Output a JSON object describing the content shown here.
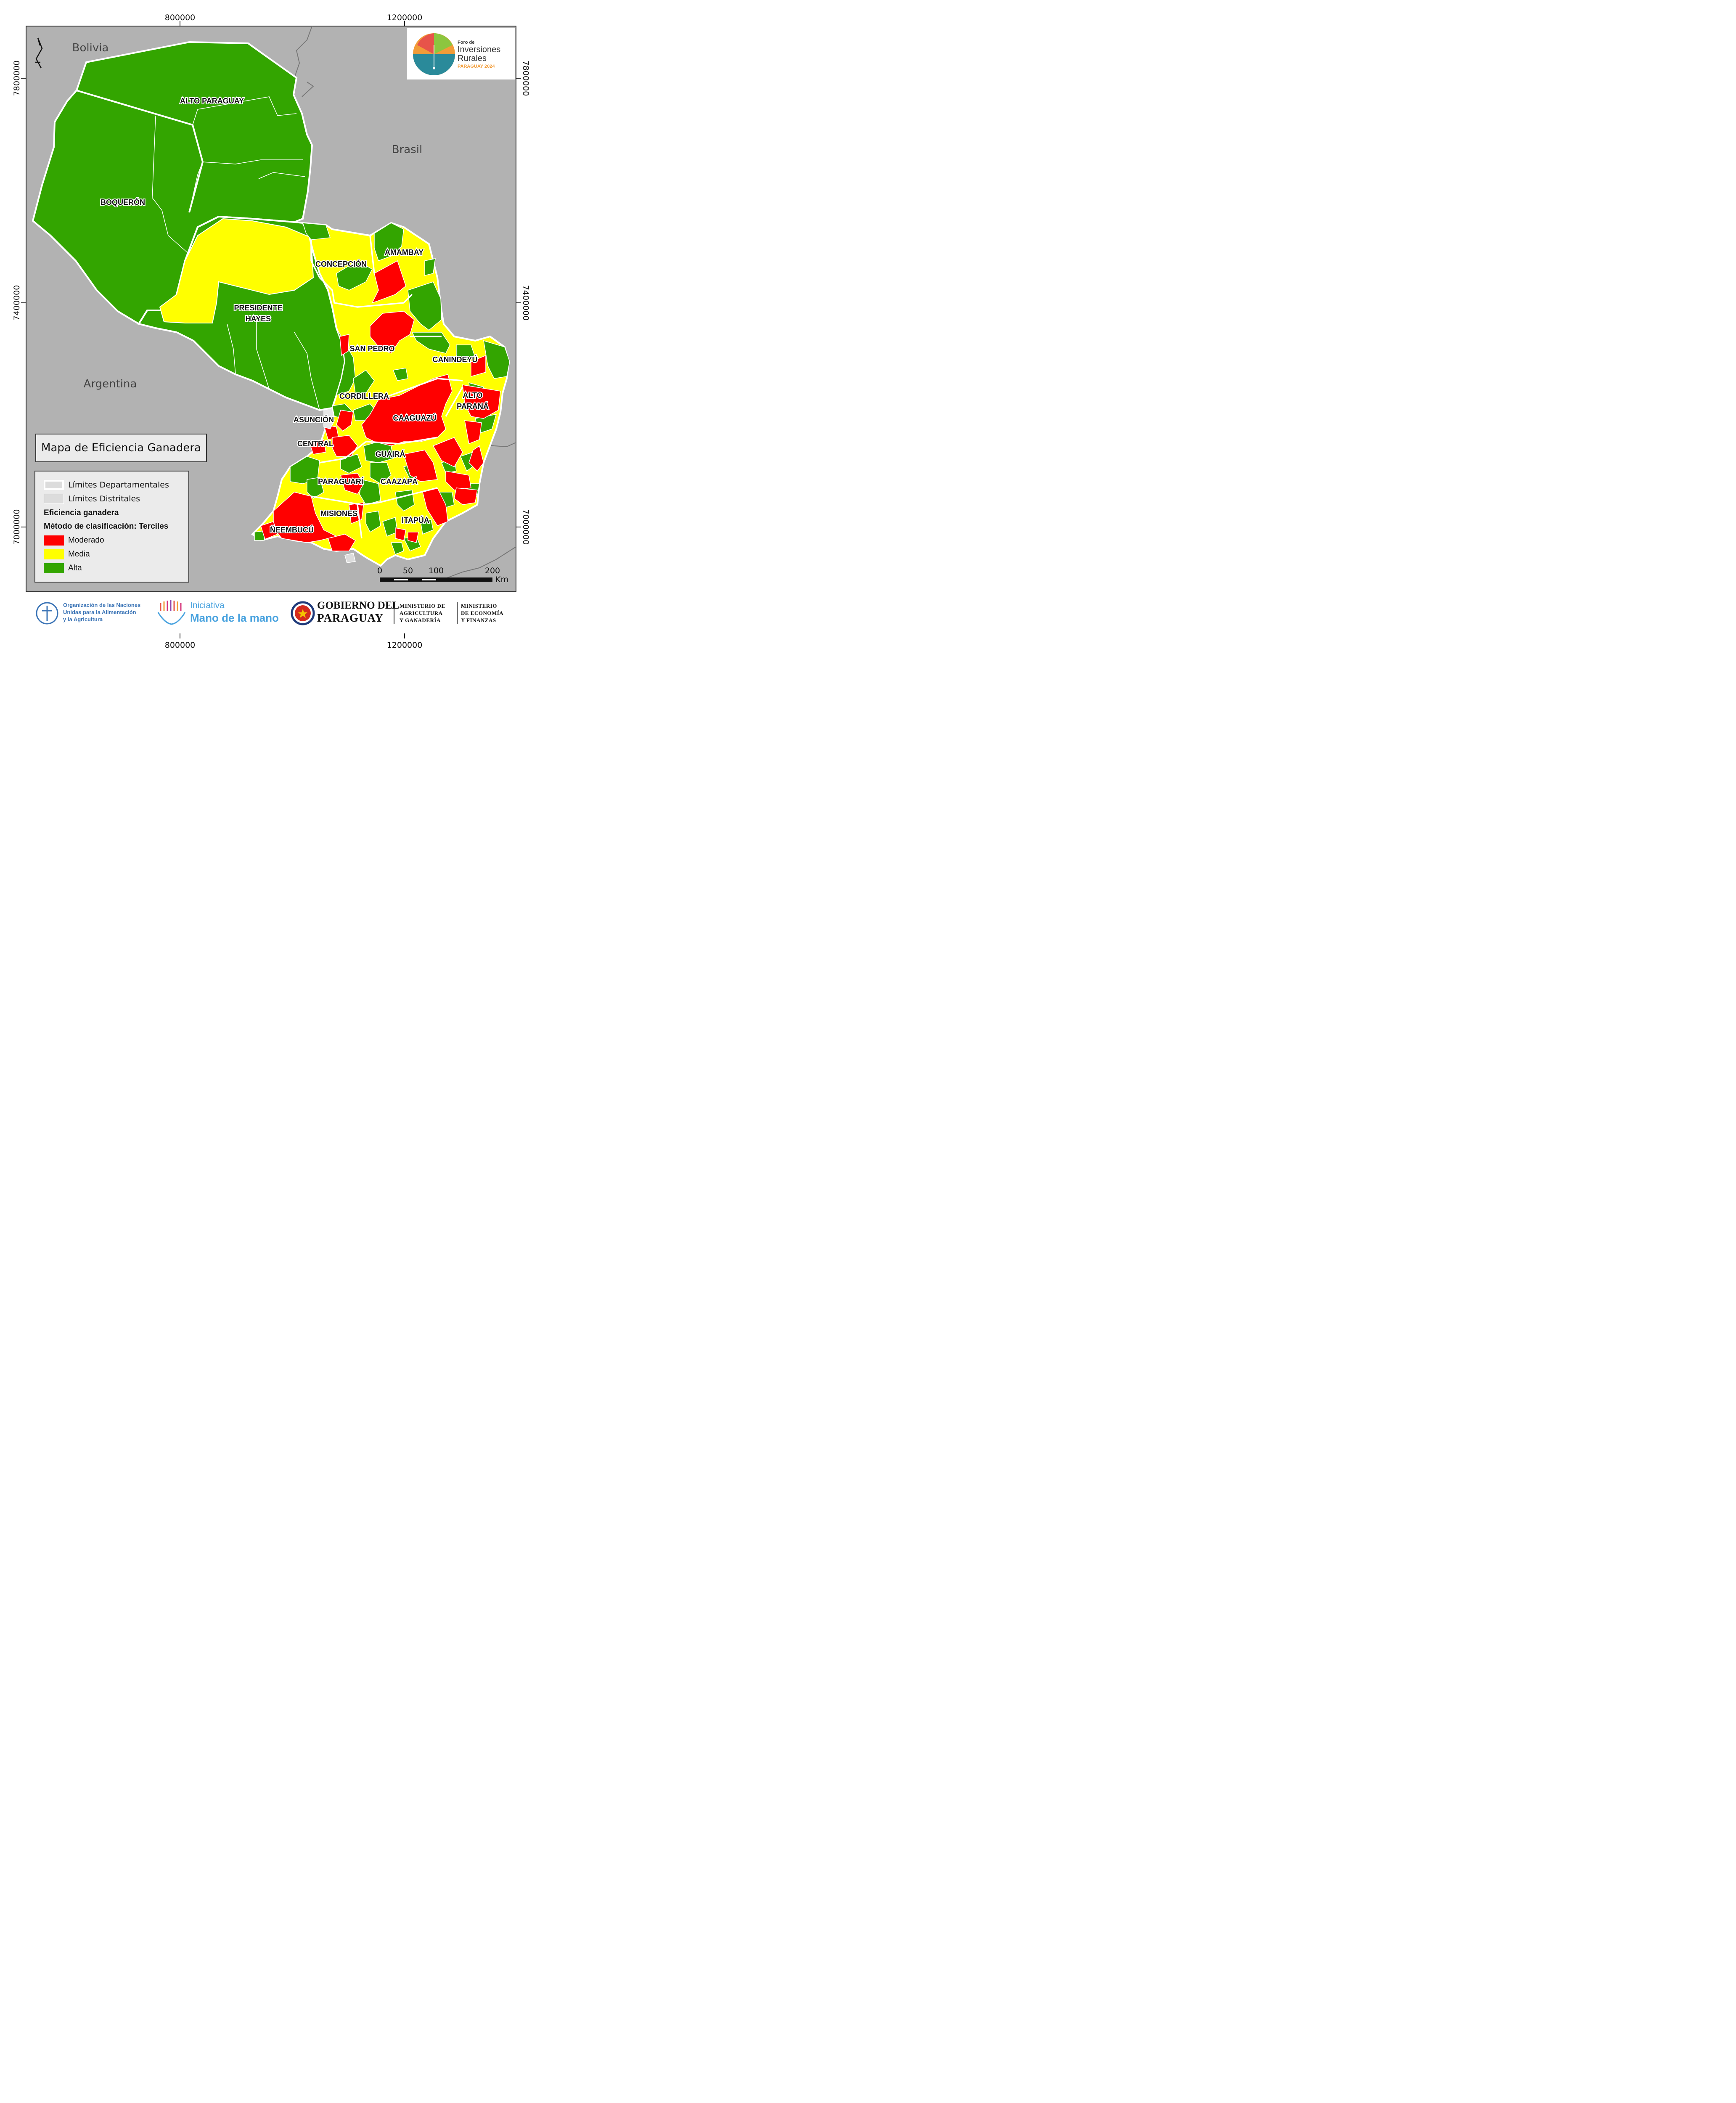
{
  "title": "Mapa de Eficiencia Ganadera",
  "grid_labels": {
    "x_left": "800000",
    "x_right": "1200000",
    "y_top": "7800000",
    "y_mid": "7400000",
    "y_bottom": "7000000"
  },
  "countries": {
    "bolivia": "Bolivia",
    "brasil": "Brasil",
    "argentina": "Argentina"
  },
  "departments": {
    "alto_paraguay": "ALTO PARAGUAY",
    "boqueron": "BOQUERÓN",
    "presidente_hayes_1": "PRESIDENTE",
    "presidente_hayes_2": "HAYES",
    "concepcion": "CONCEPCIÓN",
    "amambay": "AMAMBAY",
    "san_pedro": "SAN PEDRO",
    "canindeyu": "CANINDEYÚ",
    "cordillera": "CORDILLERA",
    "alto_parana_1": "ALTO",
    "alto_parana_2": "PARANÁ",
    "asuncion": "ASUNCIÓN",
    "caaguazu": "CAAGUAZÚ",
    "central": "CENTRAL",
    "guaira": "GUAIRÁ",
    "paraguari": "PARAGUARÍ",
    "caazapa": "CAAZAPÁ",
    "misiones": "MISIONES",
    "neembucu": "ÑEEMBUCÚ",
    "itapua": "ITAPÚA"
  },
  "legend": {
    "dept_limits": "Límites Departamentales",
    "district_limits": "Límites Distritales",
    "heading": "Eficiencia ganadera",
    "method": "Método de clasificación: Terciles",
    "classes": [
      {
        "label": "Moderado",
        "color": "#ff0000"
      },
      {
        "label": "Media",
        "color": "#ffff00"
      },
      {
        "label": "Alta",
        "color": "#33a500"
      }
    ]
  },
  "scale_bar": {
    "ticks": [
      "0",
      "50",
      "100",
      "200"
    ],
    "unit": "Km"
  },
  "foro_logo": {
    "line1": "Foro de",
    "line2": "Inversiones",
    "line3": "Rurales",
    "line4": "PARAGUAY 2024"
  },
  "footer": {
    "fao_line1": "Organización de las Naciones",
    "fao_line2": "Unidas para la Alimentación",
    "fao_line3": "y la Agricultura",
    "mano_line1": "Iniciativa",
    "mano_line2": "Mano de la mano",
    "gob_line1": "GOBIERNO DEL",
    "gob_line2": "PARAGUAY",
    "mag_line1": "MINISTERIO DE",
    "mag_line2": "AGRICULTURA",
    "mag_line3": "Y GANADERÍA",
    "mef_line1": "MINISTERIO",
    "mef_line2": "DE ECONOMÍA",
    "mef_line3": "Y FINANZAS"
  },
  "colors": {
    "background": "#b2b2b2",
    "moderado": "#ff0000",
    "media": "#ffff00",
    "alta": "#33a500"
  }
}
